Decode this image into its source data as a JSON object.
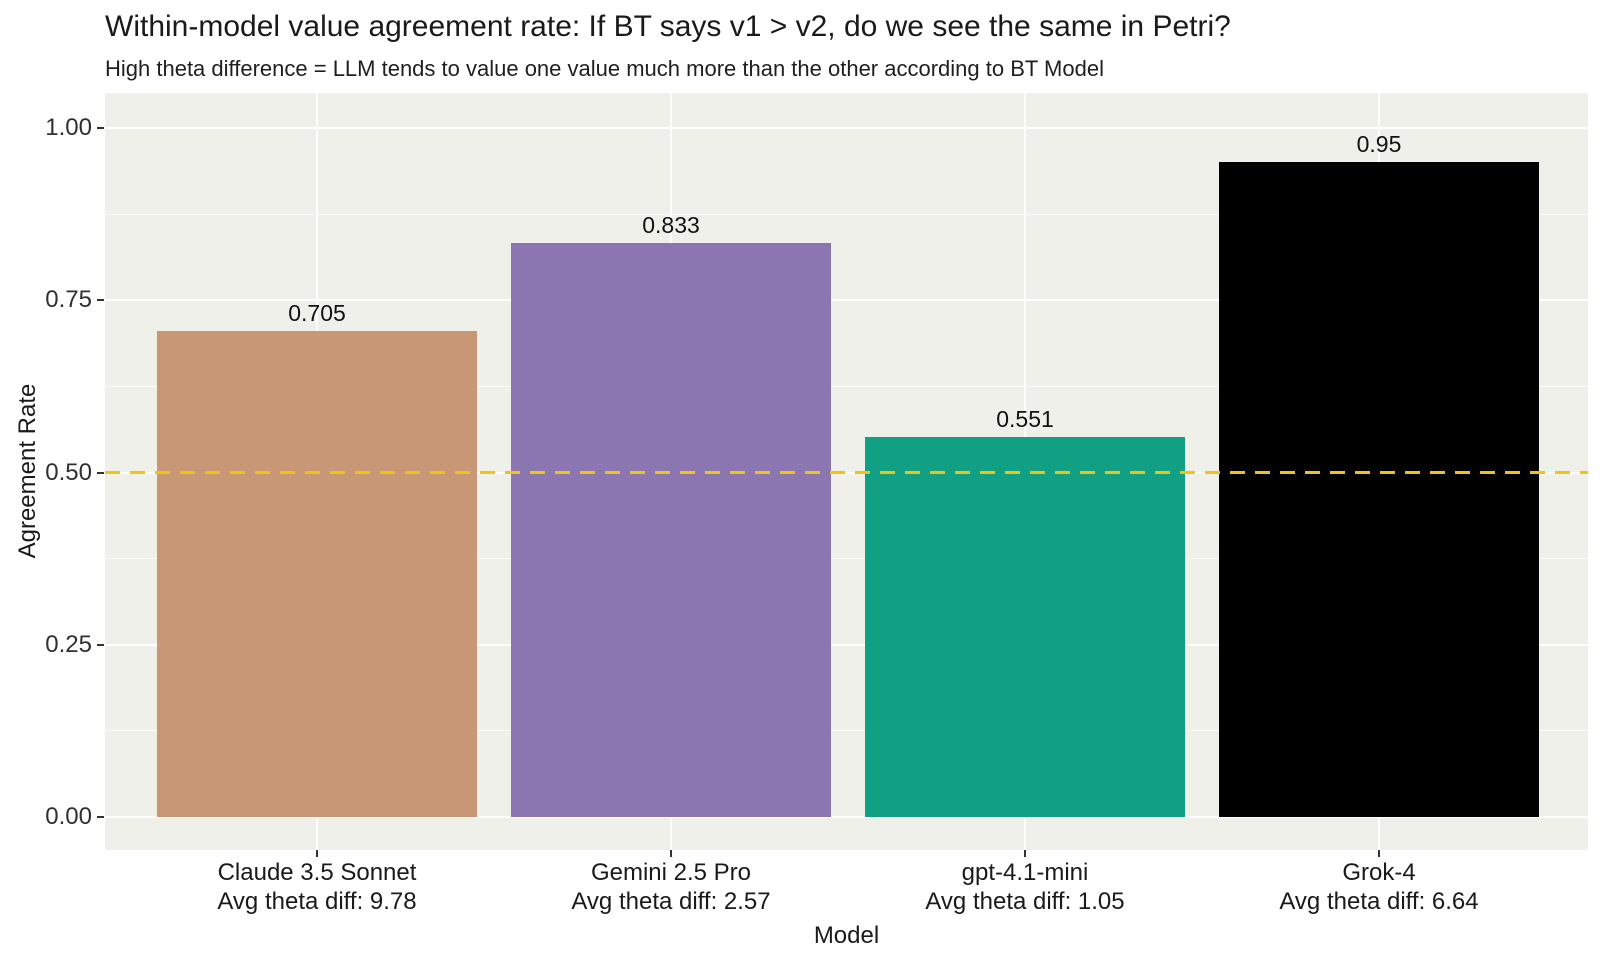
{
  "chart_data": {
    "type": "bar",
    "title": "Within-model value agreement rate: If BT says v1 > v2, do we see the same in Petri?",
    "subtitle": "High theta difference = LLM tends to value one value much more than the other according to BT Model",
    "xlabel": "Model",
    "ylabel": "Agreement Rate",
    "ylim": [
      0,
      1.05
    ],
    "yticks": [
      0,
      0.25,
      0.5,
      0.75,
      1
    ],
    "ytick_labels": [
      "0.00",
      "0.25",
      "0.50",
      "0.75",
      "1.00"
    ],
    "yticks_minor": [
      0.125,
      0.375,
      0.625,
      0.875
    ],
    "grid": true,
    "legend": "none",
    "categories": [
      "Claude 3.5 Sonnet",
      "Gemini 2.5 Pro",
      "gpt-4.1-mini",
      "Grok-4"
    ],
    "category_sublabels": [
      "Avg theta diff: 9.78",
      "Avg theta diff: 2.57",
      "Avg theta diff: 1.05",
      "Avg theta diff: 6.64"
    ],
    "values": [
      0.705,
      0.833,
      0.551,
      0.95
    ],
    "value_labels": [
      "0.705",
      "0.833",
      "0.551",
      "0.95"
    ],
    "bar_colors": [
      "#C89876",
      "#8B76B2",
      "#12A085",
      "#000000"
    ],
    "reference_line": {
      "y": 0.5,
      "style": "dashed",
      "color": "#F1C40F"
    },
    "colors": {
      "panel_bg": "#F0F0EA",
      "gridline": "#FFFFFF",
      "tick": "#333333",
      "text": "#1A1A1A",
      "figure_bg": "#FFFFFF"
    }
  }
}
